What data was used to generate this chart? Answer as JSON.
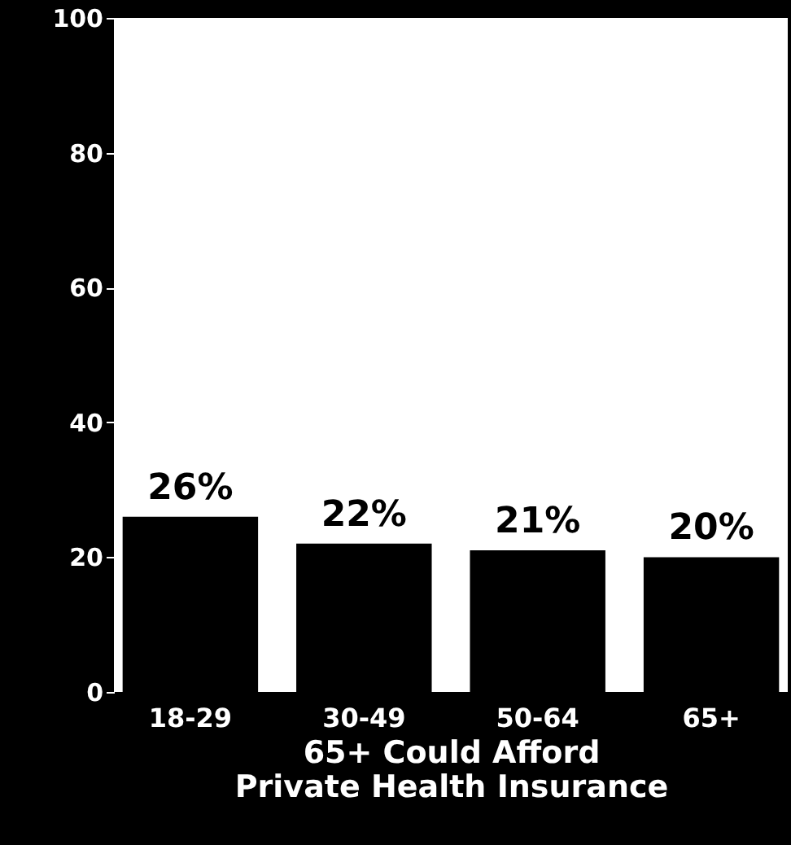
{
  "chart_data": {
    "type": "bar",
    "xlabel": "65+ Could Afford Private Health Insurance",
    "categories": [
      "18-29",
      "30-49",
      "50-64",
      "65+"
    ],
    "values": [
      26,
      22,
      21,
      20
    ],
    "value_labels": [
      "26%",
      "22%",
      "21%",
      "20%"
    ],
    "color": "#000000",
    "ylim": [
      0,
      100
    ],
    "yticks": [
      0,
      20,
      40,
      60,
      80,
      100
    ],
    "grid": false
  }
}
